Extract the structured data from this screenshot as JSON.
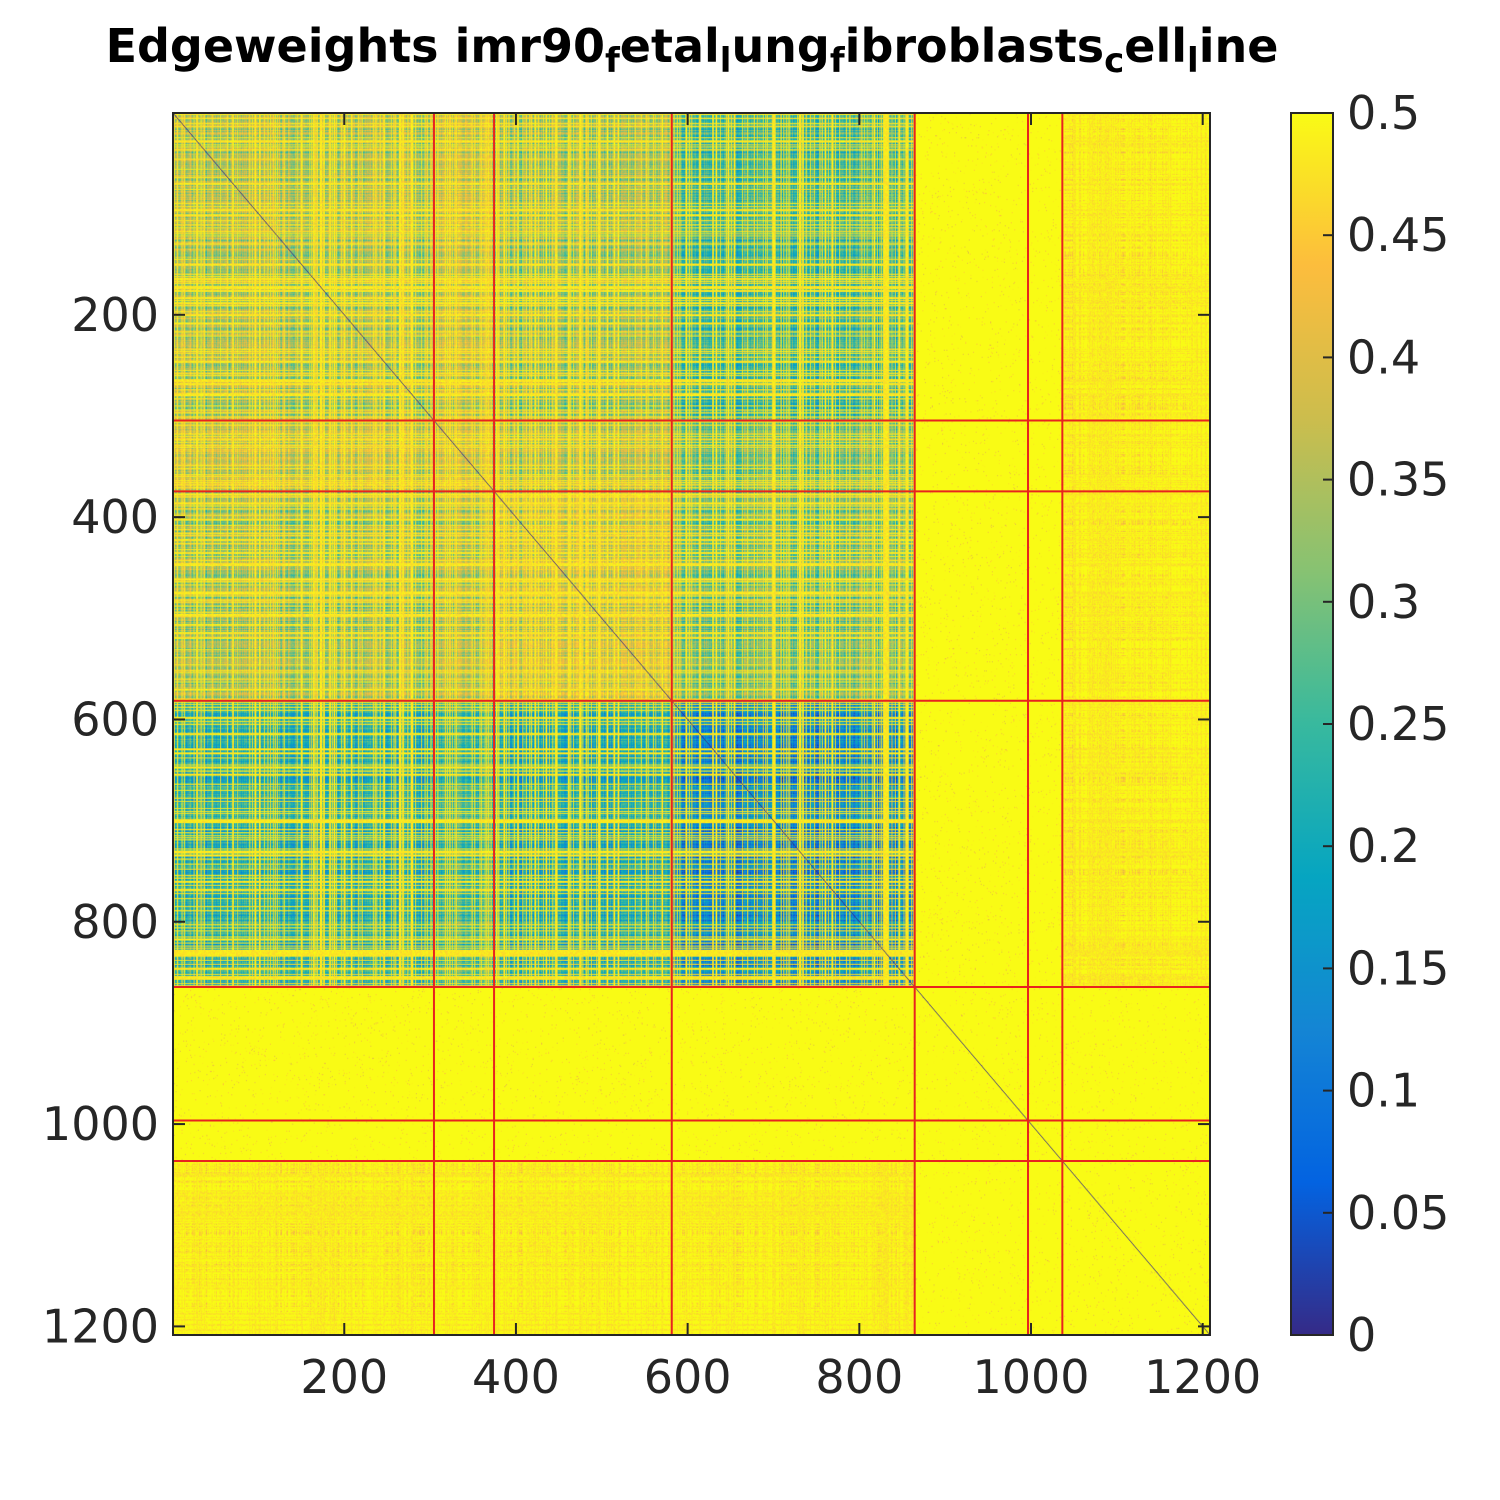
{
  "chart_data": {
    "type": "heatmap",
    "title": "Edgeweights imr90_fetal_lung_fibroblasts_cell_line",
    "title_segments": [
      {
        "text": "Edgeweights imr90",
        "sub": false
      },
      {
        "text": "f",
        "sub": true
      },
      {
        "text": "etal",
        "sub": false
      },
      {
        "text": "l",
        "sub": true
      },
      {
        "text": "ung",
        "sub": false
      },
      {
        "text": "f",
        "sub": true
      },
      {
        "text": "ibroblasts",
        "sub": false
      },
      {
        "text": "c",
        "sub": true
      },
      {
        "text": "ell",
        "sub": false
      },
      {
        "text": "l",
        "sub": true
      },
      {
        "text": "ine",
        "sub": false
      }
    ],
    "xlabel": "",
    "ylabel": "",
    "matrix_size": 1208,
    "xlim": [
      0.5,
      1208.5
    ],
    "ylim": [
      0.5,
      1208.5
    ],
    "y_direction": "reverse",
    "x_ticks": [
      200,
      400,
      600,
      800,
      1000,
      1200
    ],
    "x_tick_labels": [
      "200",
      "400",
      "600",
      "800",
      "1000",
      "1200"
    ],
    "y_ticks": [
      200,
      400,
      600,
      800,
      1000,
      1200
    ],
    "y_tick_labels": [
      "200",
      "400",
      "600",
      "800",
      "1000",
      "1200"
    ],
    "colorbar": {
      "location": "right",
      "limits": [
        0,
        0.5
      ],
      "ticks": [
        0,
        0.05,
        0.1,
        0.15,
        0.2,
        0.25,
        0.3,
        0.35,
        0.4,
        0.45,
        0.5
      ],
      "tick_labels": [
        "0",
        "0.05",
        "0.1",
        "0.15",
        "0.2",
        "0.25",
        "0.3",
        "0.35",
        "0.4",
        "0.45",
        "0.5"
      ],
      "colormap": "parula"
    },
    "boundaries": [
      304,
      374,
      581,
      864,
      996,
      1036
    ],
    "boundary_color": "#e8231f",
    "block_edges": [
      0,
      304,
      374,
      581,
      864,
      996,
      1036,
      1208
    ],
    "block_mean_weights": [
      [
        0.3,
        0.33,
        0.28,
        0.2,
        0.49,
        0.5,
        0.48
      ],
      [
        0.33,
        0.34,
        0.3,
        0.24,
        0.49,
        0.5,
        0.48
      ],
      [
        0.28,
        0.3,
        0.33,
        0.24,
        0.49,
        0.5,
        0.48
      ],
      [
        0.17,
        0.2,
        0.15,
        0.08,
        0.49,
        0.5,
        0.48
      ],
      [
        0.49,
        0.49,
        0.49,
        0.49,
        0.5,
        0.5,
        0.5
      ],
      [
        0.5,
        0.5,
        0.5,
        0.5,
        0.5,
        0.5,
        0.5
      ],
      [
        0.48,
        0.48,
        0.48,
        0.48,
        0.5,
        0.5,
        0.49
      ]
    ],
    "diagonal_value": 0,
    "grid": false
  },
  "colors": {
    "axis": "#262626",
    "background": "#ffffff"
  }
}
